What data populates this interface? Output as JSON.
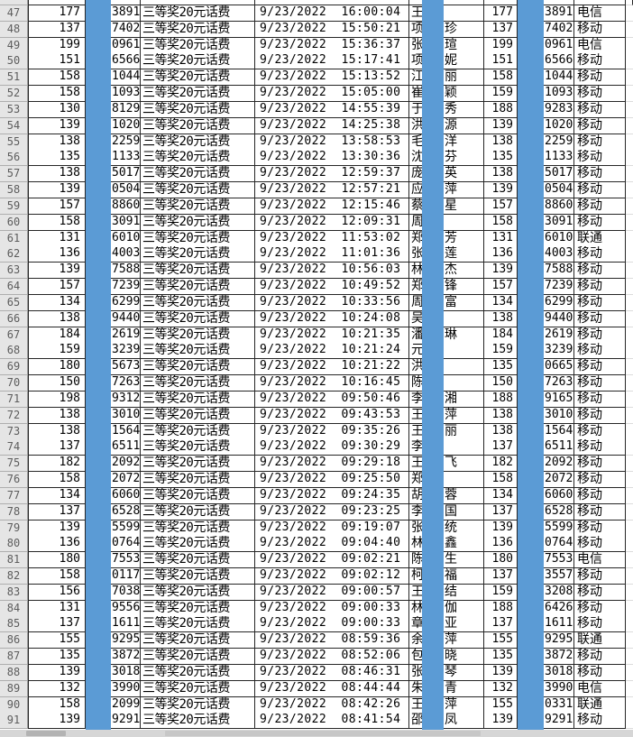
{
  "app": {
    "kind": "spreadsheet-prize-list"
  },
  "colors": {
    "redaction_bar": "#5b9bd5",
    "grid_line": "#262626",
    "row_header_bg": "#e5e5e5",
    "scroll_strip": "#d6d6d6"
  },
  "table": {
    "date": "9/23/2022",
    "prize_label": "三等奖20元话费",
    "carriers_seen": [
      "电信",
      "移动",
      "联通"
    ],
    "rows": [
      {
        "row": "47",
        "prefix_l": "177",
        "suffix_l": "3891",
        "time": "16:00:04",
        "name_first": "王",
        "name_last": "",
        "prefix_r": "177",
        "suffix_r": "3891",
        "carrier": "电信"
      },
      {
        "row": "48",
        "prefix_l": "137",
        "suffix_l": "7402",
        "time": "15:50:21",
        "name_first": "项",
        "name_last": "珍",
        "prefix_r": "137",
        "suffix_r": "7402",
        "carrier": "移动"
      },
      {
        "row": "49",
        "prefix_l": "199",
        "suffix_l": "0961",
        "time": "15:36:37",
        "name_first": "张",
        "name_last": "瑄",
        "prefix_r": "199",
        "suffix_r": "0961",
        "carrier": "电信"
      },
      {
        "row": "50",
        "prefix_l": "151",
        "suffix_l": "6566",
        "time": "15:17:41",
        "name_first": "项",
        "name_last": "妮",
        "prefix_r": "151",
        "suffix_r": "6566",
        "carrier": "移动"
      },
      {
        "row": "51",
        "prefix_l": "158",
        "suffix_l": "1044",
        "time": "15:13:52",
        "name_first": "江",
        "name_last": "丽",
        "prefix_r": "158",
        "suffix_r": "1044",
        "carrier": "移动"
      },
      {
        "row": "52",
        "prefix_l": "158",
        "suffix_l": "1093",
        "time": "15:05:00",
        "name_first": "崔",
        "name_last": "颖",
        "prefix_r": "159",
        "suffix_r": "1093",
        "carrier": "移动"
      },
      {
        "row": "53",
        "prefix_l": "130",
        "suffix_l": "8129",
        "time": "14:55:39",
        "name_first": "于",
        "name_last": "秀",
        "prefix_r": "188",
        "suffix_r": "9283",
        "carrier": "移动"
      },
      {
        "row": "54",
        "prefix_l": "139",
        "suffix_l": "1020",
        "time": "14:25:38",
        "name_first": "洪",
        "name_last": "源",
        "prefix_r": "139",
        "suffix_r": "1020",
        "carrier": "移动"
      },
      {
        "row": "55",
        "prefix_l": "138",
        "suffix_l": "2259",
        "time": "13:58:53",
        "name_first": "毛",
        "name_last": "洋",
        "prefix_r": "138",
        "suffix_r": "2259",
        "carrier": "移动"
      },
      {
        "row": "56",
        "prefix_l": "135",
        "suffix_l": "1133",
        "time": "13:30:36",
        "name_first": "沈",
        "name_last": "芬",
        "prefix_r": "135",
        "suffix_r": "1133",
        "carrier": "移动"
      },
      {
        "row": "57",
        "prefix_l": "138",
        "suffix_l": "5017",
        "time": "12:59:37",
        "name_first": "庞",
        "name_last": "英",
        "prefix_r": "138",
        "suffix_r": "5017",
        "carrier": "移动"
      },
      {
        "row": "58",
        "prefix_l": "139",
        "suffix_l": "0504",
        "time": "12:57:21",
        "name_first": "应",
        "name_last": "萍",
        "prefix_r": "139",
        "suffix_r": "0504",
        "carrier": "移动"
      },
      {
        "row": "59",
        "prefix_l": "157",
        "suffix_l": "8860",
        "time": "12:15:46",
        "name_first": "蔡",
        "name_last": "星",
        "prefix_r": "157",
        "suffix_r": "8860",
        "carrier": "移动"
      },
      {
        "row": "60",
        "prefix_l": "158",
        "suffix_l": "3091",
        "time": "12:09:31",
        "name_first": "周",
        "name_last": "",
        "prefix_r": "158",
        "suffix_r": "3091",
        "carrier": "移动"
      },
      {
        "row": "61",
        "prefix_l": "131",
        "suffix_l": "6010",
        "time": "11:53:02",
        "name_first": "郑",
        "name_last": "芳",
        "prefix_r": "131",
        "suffix_r": "6010",
        "carrier": "联通"
      },
      {
        "row": "62",
        "prefix_l": "136",
        "suffix_l": "4003",
        "time": "11:01:36",
        "name_first": "张",
        "name_last": "莲",
        "prefix_r": "136",
        "suffix_r": "4003",
        "carrier": "移动"
      },
      {
        "row": "63",
        "prefix_l": "139",
        "suffix_l": "7588",
        "time": "10:56:03",
        "name_first": "林",
        "name_last": "杰",
        "prefix_r": "139",
        "suffix_r": "7588",
        "carrier": "移动"
      },
      {
        "row": "64",
        "prefix_l": "157",
        "suffix_l": "7239",
        "time": "10:49:52",
        "name_first": "郑",
        "name_last": "锋",
        "prefix_r": "157",
        "suffix_r": "7239",
        "carrier": "移动"
      },
      {
        "row": "65",
        "prefix_l": "134",
        "suffix_l": "6299",
        "time": "10:33:56",
        "name_first": "周",
        "name_last": "富",
        "prefix_r": "134",
        "suffix_r": "6299",
        "carrier": "移动"
      },
      {
        "row": "66",
        "prefix_l": "138",
        "suffix_l": "9440",
        "time": "10:24:08",
        "name_first": "吴",
        "name_last": "",
        "prefix_r": "138",
        "suffix_r": "9440",
        "carrier": "移动"
      },
      {
        "row": "67",
        "prefix_l": "184",
        "suffix_l": "2619",
        "time": "10:21:35",
        "name_first": "潘",
        "name_last": "琳",
        "prefix_r": "184",
        "suffix_r": "2619",
        "carrier": "移动"
      },
      {
        "row": "68",
        "prefix_l": "159",
        "suffix_l": "3239",
        "time": "10:21:24",
        "name_first": "元",
        "name_last": "",
        "prefix_r": "159",
        "suffix_r": "3239",
        "carrier": "移动"
      },
      {
        "row": "69",
        "prefix_l": "180",
        "suffix_l": "5673",
        "time": "10:21:22",
        "name_first": "洪",
        "name_last": "",
        "prefix_r": "135",
        "suffix_r": "0665",
        "carrier": "移动"
      },
      {
        "row": "70",
        "prefix_l": "150",
        "suffix_l": "7263",
        "time": "10:16:45",
        "name_first": "陈",
        "name_last": "",
        "prefix_r": "150",
        "suffix_r": "7263",
        "carrier": "移动"
      },
      {
        "row": "71",
        "prefix_l": "198",
        "suffix_l": "9312",
        "time": "09:50:46",
        "name_first": "李",
        "name_last": "湘",
        "prefix_r": "188",
        "suffix_r": "9165",
        "carrier": "移动"
      },
      {
        "row": "72",
        "prefix_l": "138",
        "suffix_l": "3010",
        "time": "09:43:53",
        "name_first": "王",
        "name_last": "萍",
        "prefix_r": "138",
        "suffix_r": "3010",
        "carrier": "移动"
      },
      {
        "row": "73",
        "prefix_l": "138",
        "suffix_l": "1564",
        "time": "09:35:26",
        "name_first": "王",
        "name_last": "丽",
        "prefix_r": "138",
        "suffix_r": "1564",
        "carrier": "移动"
      },
      {
        "row": "74",
        "prefix_l": "137",
        "suffix_l": "6511",
        "time": "09:30:29",
        "name_first": "李",
        "name_last": "",
        "prefix_r": "137",
        "suffix_r": "6511",
        "carrier": "移动"
      },
      {
        "row": "75",
        "prefix_l": "182",
        "suffix_l": "2092",
        "time": "09:29:18",
        "name_first": "王",
        "name_last": "飞",
        "prefix_r": "182",
        "suffix_r": "2092",
        "carrier": "移动"
      },
      {
        "row": "76",
        "prefix_l": "158",
        "suffix_l": "2072",
        "time": "09:25:50",
        "name_first": "郑",
        "name_last": "",
        "prefix_r": "158",
        "suffix_r": "2072",
        "carrier": "移动"
      },
      {
        "row": "77",
        "prefix_l": "134",
        "suffix_l": "6060",
        "time": "09:24:35",
        "name_first": "胡",
        "name_last": "蓉",
        "prefix_r": "134",
        "suffix_r": "6060",
        "carrier": "移动"
      },
      {
        "row": "78",
        "prefix_l": "137",
        "suffix_l": "6528",
        "time": "09:23:25",
        "name_first": "李",
        "name_last": "国",
        "prefix_r": "137",
        "suffix_r": "6528",
        "carrier": "移动"
      },
      {
        "row": "79",
        "prefix_l": "139",
        "suffix_l": "5599",
        "time": "09:19:07",
        "name_first": "张",
        "name_last": "统",
        "prefix_r": "139",
        "suffix_r": "5599",
        "carrier": "移动"
      },
      {
        "row": "80",
        "prefix_l": "136",
        "suffix_l": "0764",
        "time": "09:04:40",
        "name_first": "林",
        "name_last": "鑫",
        "prefix_r": "136",
        "suffix_r": "0764",
        "carrier": "移动"
      },
      {
        "row": "81",
        "prefix_l": "180",
        "suffix_l": "7553",
        "time": "09:02:21",
        "name_first": "陈",
        "name_last": "生",
        "prefix_r": "180",
        "suffix_r": "7553",
        "carrier": "电信"
      },
      {
        "row": "82",
        "prefix_l": "158",
        "suffix_l": "0117",
        "time": "09:02:12",
        "name_first": "柯",
        "name_last": "福",
        "prefix_r": "137",
        "suffix_r": "3557",
        "carrier": "移动"
      },
      {
        "row": "83",
        "prefix_l": "156",
        "suffix_l": "7038",
        "time": "09:00:57",
        "name_first": "王",
        "name_last": "结",
        "prefix_r": "159",
        "suffix_r": "3208",
        "carrier": "移动"
      },
      {
        "row": "84",
        "prefix_l": "131",
        "suffix_l": "9556",
        "time": "09:00:33",
        "name_first": "林",
        "name_last": "伽",
        "prefix_r": "188",
        "suffix_r": "6426",
        "carrier": "移动"
      },
      {
        "row": "85",
        "prefix_l": "137",
        "suffix_l": "1611",
        "time": "09:00:33",
        "name_first": "章",
        "name_last": "亚",
        "prefix_r": "137",
        "suffix_r": "1611",
        "carrier": "移动"
      },
      {
        "row": "86",
        "prefix_l": "155",
        "suffix_l": "9295",
        "time": "08:59:36",
        "name_first": "余",
        "name_last": "萍",
        "prefix_r": "155",
        "suffix_r": "9295",
        "carrier": "联通"
      },
      {
        "row": "87",
        "prefix_l": "135",
        "suffix_l": "3872",
        "time": "08:52:06",
        "name_first": "包",
        "name_last": "晓",
        "prefix_r": "135",
        "suffix_r": "3872",
        "carrier": "移动"
      },
      {
        "row": "88",
        "prefix_l": "139",
        "suffix_l": "3018",
        "time": "08:46:31",
        "name_first": "张",
        "name_last": "琴",
        "prefix_r": "139",
        "suffix_r": "3018",
        "carrier": "移动"
      },
      {
        "row": "89",
        "prefix_l": "132",
        "suffix_l": "3990",
        "time": "08:44:44",
        "name_first": "朱",
        "name_last": "青",
        "prefix_r": "132",
        "suffix_r": "3990",
        "carrier": "电信"
      },
      {
        "row": "90",
        "prefix_l": "158",
        "suffix_l": "2099",
        "time": "08:42:26",
        "name_first": "王",
        "name_last": "萍",
        "prefix_r": "155",
        "suffix_r": "0331",
        "carrier": "联通"
      },
      {
        "row": "91",
        "prefix_l": "139",
        "suffix_l": "9291",
        "time": "08:41:54",
        "name_first": "邵",
        "name_last": "凤",
        "prefix_r": "139",
        "suffix_r": "9291",
        "carrier": "移动"
      }
    ]
  }
}
